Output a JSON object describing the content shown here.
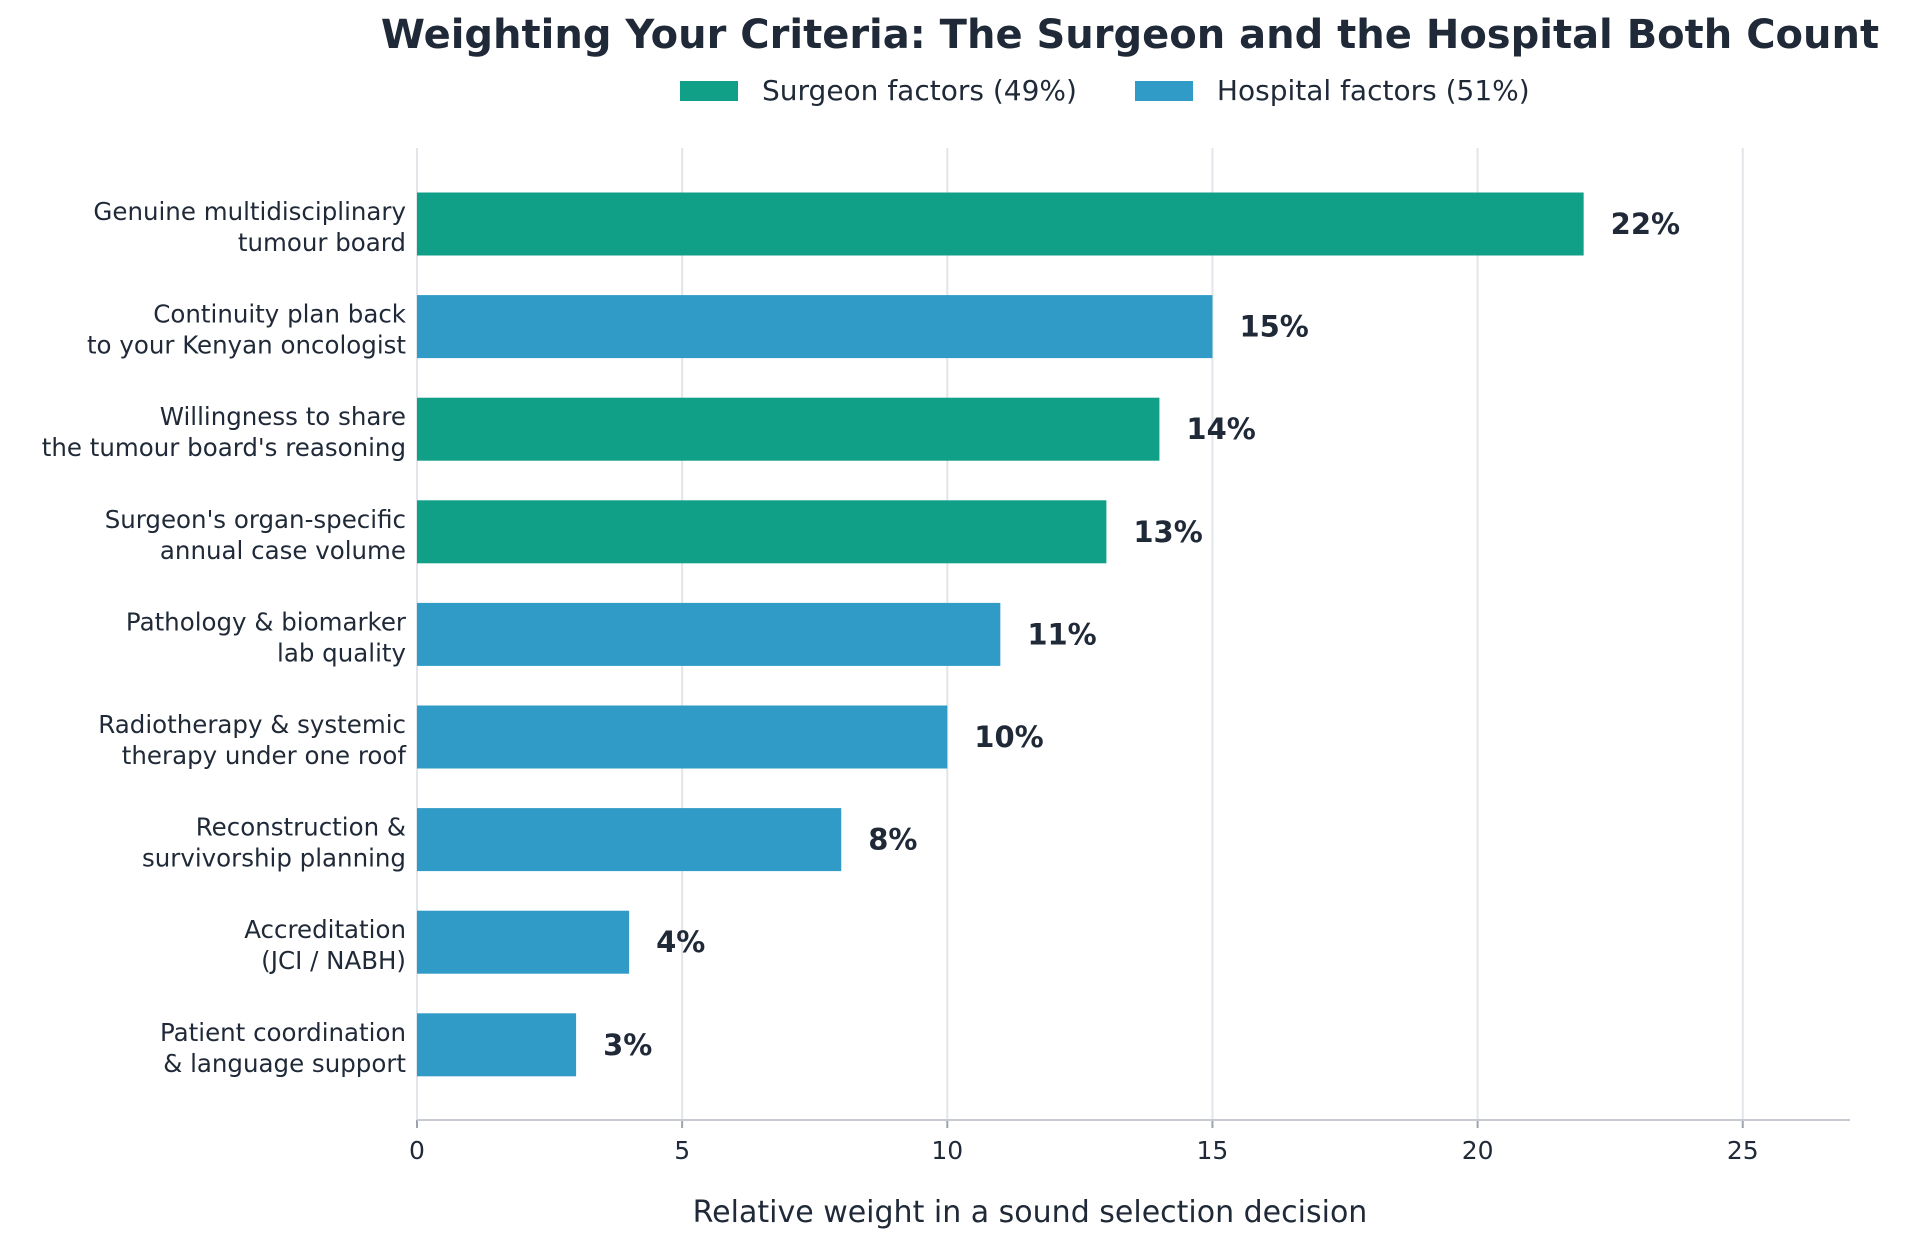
{
  "chart_data": {
    "type": "bar",
    "orientation": "horizontal",
    "title": "Weighting Your Criteria: The Surgeon and the Hospital Both Count",
    "xlabel": "Relative weight in a sound selection decision",
    "ylabel": "",
    "xlim": [
      0,
      27
    ],
    "xticks": [
      0,
      5,
      10,
      15,
      20,
      25
    ],
    "grid": "vertical",
    "legend": {
      "placement": "top-center",
      "entries": [
        {
          "key": "surgeon",
          "label": "Surgeon factors  (49%)",
          "color": "#109f87"
        },
        {
          "key": "hospital",
          "label": "Hospital factors  (51%)",
          "color": "#2f9bc6"
        }
      ]
    },
    "categories": [
      [
        "Genuine multidisciplinary",
        "tumour board"
      ],
      [
        "Continuity plan back",
        "to your Kenyan oncologist"
      ],
      [
        "Willingness to share",
        "the tumour board's reasoning"
      ],
      [
        "Surgeon's organ-specific",
        "annual case volume"
      ],
      [
        "Pathology & biomarker",
        "lab quality"
      ],
      [
        "Radiotherapy & systemic",
        "therapy under one roof"
      ],
      [
        "Reconstruction &",
        "survivorship planning"
      ],
      [
        "Accreditation",
        "(JCI / NABH)"
      ],
      [
        "Patient coordination",
        "& language support"
      ]
    ],
    "values": [
      22,
      15,
      14,
      13,
      11,
      10,
      8,
      4,
      3
    ],
    "value_labels": [
      "22%",
      "15%",
      "14%",
      "13%",
      "11%",
      "10%",
      "8%",
      "4%",
      "3%"
    ],
    "groups": [
      "surgeon",
      "hospital",
      "surgeon",
      "surgeon",
      "hospital",
      "hospital",
      "hospital",
      "hospital",
      "hospital"
    ]
  }
}
